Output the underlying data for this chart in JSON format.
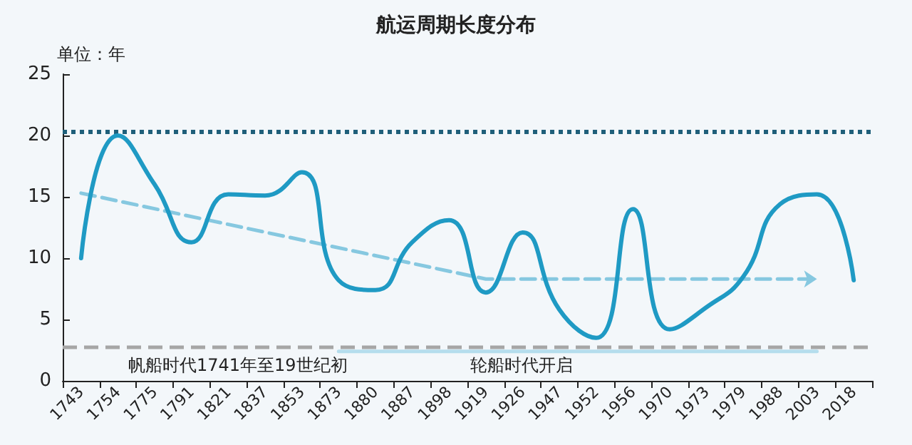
{
  "chart_data": {
    "type": "line",
    "title": "航运周期长度分布",
    "ylabel": "单位：年",
    "categories": [
      "1743",
      "1754",
      "1775",
      "1791",
      "1821",
      "1837",
      "1853",
      "1873",
      "1880",
      "1887",
      "1898",
      "1919",
      "1926",
      "1947",
      "1952",
      "1956",
      "1970",
      "1973",
      "1979",
      "1988",
      "2003",
      "2018"
    ],
    "series": [
      {
        "color": "#1f9ac4",
        "line_style": "solid",
        "values": [
          10,
          20,
          16,
          11.3,
          15.2,
          15.1,
          17,
          8.2,
          7.4,
          11.3,
          13.1,
          7.2,
          12.1,
          5.8,
          3.5,
          14,
          4.2,
          6,
          8.5,
          14.4,
          15.2,
          8.2
        ]
      },
      {
        "color": "#86c8e0",
        "line_style": "dashed",
        "values": [
          15.3,
          null,
          null,
          null,
          null,
          null,
          null,
          null,
          null,
          null,
          null,
          8.3,
          null,
          null,
          null,
          null,
          null,
          null,
          null,
          null,
          8.3,
          null
        ]
      },
      {
        "color": "#b5dded",
        "line_style": "solid",
        "values": [
          null,
          null,
          null,
          null,
          null,
          null,
          null,
          2.4,
          null,
          null,
          null,
          null,
          null,
          null,
          null,
          null,
          null,
          null,
          null,
          null,
          2.4,
          null
        ]
      }
    ],
    "ylim": [
      0,
      25
    ],
    "yticks": [
      0,
      5,
      10,
      15,
      20,
      25
    ],
    "grid": false,
    "marker": "none",
    "ref_lines": [
      {
        "axis": "y",
        "value": 20.3,
        "color": "#1f5f7a",
        "line_style": "dotted"
      },
      {
        "axis": "y",
        "value": 2.8,
        "color": "#a6a6a6",
        "line_style": "dashed"
      }
    ],
    "annotations": [
      "帆船时代1741年至19世纪初",
      "轮船时代开启"
    ]
  }
}
